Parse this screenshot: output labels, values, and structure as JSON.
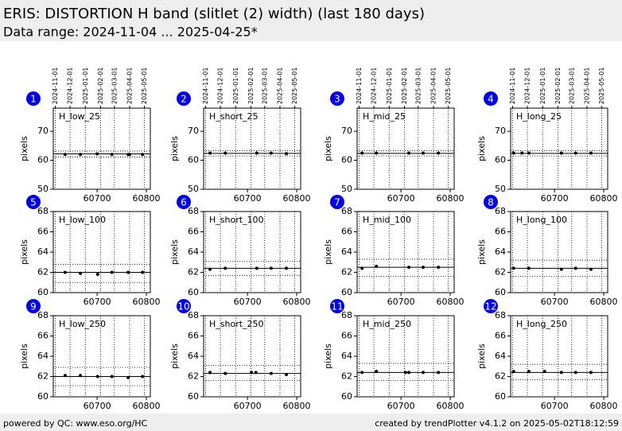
{
  "header": {
    "title": "ERIS: DISTORTION H band (slitlet (2) width) (last 180 days)",
    "subtitle": "Data range: 2024-11-04 ... 2025-04-25*"
  },
  "footer": {
    "left": "powered by QC: www.eso.org/HC",
    "right": "created by trendPlotter v4.1.2 on 2025-05-02T18:12:59"
  },
  "date_axis": {
    "ticks": [
      {
        "value": 60615,
        "label": "2024-11-01"
      },
      {
        "value": 60645,
        "label": "2024-12-01"
      },
      {
        "value": 60676,
        "label": "2025-01-01"
      },
      {
        "value": 60707,
        "label": "2025-02-01"
      },
      {
        "value": 60735,
        "label": "2025-03-01"
      },
      {
        "value": 60766,
        "label": "2025-04-01"
      },
      {
        "value": 60796,
        "label": "2025-05-01"
      }
    ]
  },
  "chart_data": [
    {
      "type": "scatter",
      "panel": "1",
      "label": "H_low_25",
      "ylabel": "pixels",
      "x": [
        60635,
        60666,
        60700,
        60730,
        60763,
        60766,
        60792
      ],
      "values": [
        62.0,
        62.0,
        62.2,
        62.0,
        62.0,
        62.0,
        62.0
      ],
      "mean": 62.2,
      "limits": [
        63.2,
        61.1
      ],
      "xlim": [
        60611,
        60808
      ],
      "ylim": [
        50,
        78
      ],
      "xticks": [
        60700,
        60800
      ],
      "yticks": [
        50,
        60,
        70
      ],
      "color": "#000000",
      "grid": true
    },
    {
      "type": "scatter",
      "panel": "2",
      "label": "H_short_25",
      "ylabel": "pixels",
      "x": [
        60624,
        60655,
        60719,
        60748,
        60779
      ],
      "values": [
        62.5,
        62.5,
        62.5,
        62.5,
        62.3
      ],
      "mean": 62.4,
      "limits": [
        63.3,
        61.5
      ],
      "xlim": [
        60611,
        60808
      ],
      "ylim": [
        50,
        78
      ],
      "xticks": [
        60700,
        60800
      ],
      "yticks": [
        50,
        60,
        70
      ],
      "color": "#000000",
      "grid": true
    },
    {
      "type": "scatter",
      "panel": "3",
      "label": "H_mid_25",
      "ylabel": "pixels",
      "x": [
        60621,
        60650,
        60716,
        60745,
        60776
      ],
      "values": [
        62.5,
        62.5,
        62.5,
        62.5,
        62.5
      ],
      "mean": 62.4,
      "limits": [
        63.3,
        61.5
      ],
      "xlim": [
        60611,
        60808
      ],
      "ylim": [
        50,
        78
      ],
      "xticks": [
        60700,
        60800
      ],
      "yticks": [
        50,
        60,
        70
      ],
      "color": "#000000",
      "grid": true
    },
    {
      "type": "scatter",
      "panel": "4",
      "label": "H_long_25",
      "ylabel": "pixels",
      "x": [
        60617,
        60634,
        60648,
        60714,
        60743,
        60774
      ],
      "values": [
        62.5,
        62.5,
        62.5,
        62.5,
        62.5,
        62.5
      ],
      "mean": 62.4,
      "limits": [
        63.3,
        61.5
      ],
      "xlim": [
        60611,
        60808
      ],
      "ylim": [
        50,
        78
      ],
      "xticks": [
        60700,
        60800
      ],
      "yticks": [
        50,
        60,
        70
      ],
      "color": "#000000",
      "grid": true
    },
    {
      "type": "scatter",
      "panel": "5",
      "label": "H_low_100",
      "ylabel": "pixels",
      "x": [
        60635,
        60666,
        60701,
        60730,
        60763,
        60792
      ],
      "values": [
        62.0,
        61.9,
        61.8,
        62.0,
        62.0,
        62.0
      ],
      "mean": 62.0,
      "limits": [
        62.8,
        61.0
      ],
      "xlim": [
        60611,
        60808
      ],
      "ylim": [
        60,
        68
      ],
      "xticks": [
        60700,
        60800
      ],
      "yticks": [
        60,
        62,
        64,
        66,
        68
      ],
      "color": "#000000",
      "grid": true
    },
    {
      "type": "scatter",
      "panel": "6",
      "label": "H_short_100",
      "ylabel": "pixels",
      "x": [
        60624,
        60655,
        60719,
        60748,
        60779
      ],
      "values": [
        62.3,
        62.4,
        62.4,
        62.4,
        62.4
      ],
      "mean": 62.4,
      "limits": [
        63.1,
        61.7
      ],
      "xlim": [
        60611,
        60808
      ],
      "ylim": [
        60,
        68
      ],
      "xticks": [
        60700,
        60800
      ],
      "yticks": [
        60,
        62,
        64,
        66,
        68
      ],
      "color": "#000000",
      "grid": true
    },
    {
      "type": "scatter",
      "panel": "7",
      "label": "H_mid_100",
      "ylabel": "pixels",
      "x": [
        60621,
        60650,
        60716,
        60745,
        60776
      ],
      "values": [
        62.4,
        62.6,
        62.5,
        62.5,
        62.5
      ],
      "mean": 62.5,
      "limits": [
        63.3,
        61.6
      ],
      "xlim": [
        60611,
        60808
      ],
      "ylim": [
        60,
        68
      ],
      "xticks": [
        60700,
        60800
      ],
      "yticks": [
        60,
        62,
        64,
        66,
        68
      ],
      "color": "#000000",
      "grid": true
    },
    {
      "type": "scatter",
      "panel": "8",
      "label": "H_long_100",
      "ylabel": "pixels",
      "x": [
        60617,
        60648,
        60714,
        60743,
        60774
      ],
      "values": [
        62.4,
        62.4,
        62.3,
        62.4,
        62.3
      ],
      "mean": 62.4,
      "limits": [
        63.2,
        61.6
      ],
      "xlim": [
        60611,
        60808
      ],
      "ylim": [
        60,
        68
      ],
      "xticks": [
        60700,
        60800
      ],
      "yticks": [
        60,
        62,
        64,
        66,
        68
      ],
      "color": "#000000",
      "grid": true
    },
    {
      "type": "scatter",
      "panel": "9",
      "label": "H_low_250",
      "ylabel": "pixels",
      "x": [
        60635,
        60666,
        60701,
        60730,
        60763,
        60792
      ],
      "values": [
        62.1,
        62.1,
        62.0,
        62.0,
        61.9,
        62.0
      ],
      "mean": 62.0,
      "limits": [
        62.9,
        61.1
      ],
      "xlim": [
        60611,
        60808
      ],
      "ylim": [
        60,
        68
      ],
      "xticks": [
        60700,
        60800
      ],
      "yticks": [
        60,
        62,
        64,
        66,
        68
      ],
      "color": "#000000",
      "grid": true
    },
    {
      "type": "scatter",
      "panel": "10",
      "label": "H_short_250",
      "ylabel": "pixels",
      "x": [
        60624,
        60655,
        60708,
        60717,
        60748,
        60779
      ],
      "values": [
        62.4,
        62.3,
        62.4,
        62.4,
        62.3,
        62.2
      ],
      "mean": 62.3,
      "limits": [
        63.1,
        61.6
      ],
      "xlim": [
        60611,
        60808
      ],
      "ylim": [
        60,
        68
      ],
      "xticks": [
        60700,
        60800
      ],
      "yticks": [
        60,
        62,
        64,
        66,
        68
      ],
      "color": "#000000",
      "grid": true
    },
    {
      "type": "scatter",
      "panel": "11",
      "label": "H_mid_250",
      "ylabel": "pixels",
      "x": [
        60621,
        60650,
        60709,
        60716,
        60745,
        60776
      ],
      "values": [
        62.4,
        62.5,
        62.4,
        62.4,
        62.4,
        62.4
      ],
      "mean": 62.4,
      "limits": [
        63.3,
        61.6
      ],
      "xlim": [
        60611,
        60808
      ],
      "ylim": [
        60,
        68
      ],
      "xticks": [
        60700,
        60800
      ],
      "yticks": [
        60,
        62,
        64,
        66,
        68
      ],
      "color": "#000000",
      "grid": true
    },
    {
      "type": "scatter",
      "panel": "12",
      "label": "H_long_250",
      "ylabel": "pixels",
      "x": [
        60617,
        60648,
        60680,
        60714,
        60743,
        60774
      ],
      "values": [
        62.5,
        62.5,
        62.5,
        62.4,
        62.4,
        62.4
      ],
      "mean": 62.4,
      "limits": [
        63.2,
        61.7
      ],
      "xlim": [
        60611,
        60808
      ],
      "ylim": [
        60,
        68
      ],
      "xticks": [
        60700,
        60800
      ],
      "yticks": [
        60,
        62,
        64,
        66,
        68
      ],
      "color": "#000000",
      "grid": true
    }
  ]
}
